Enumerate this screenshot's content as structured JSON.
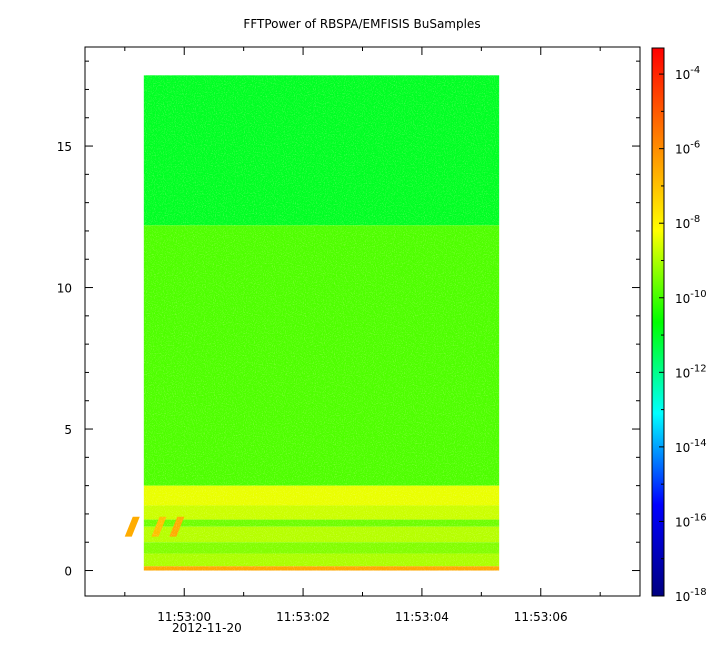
{
  "chart_data": {
    "type": "heatmap",
    "title": "FFTPower of RBSPA/EMFISIS  BuSamples",
    "xlabel": "",
    "ylabel": "",
    "x_ticks": [
      "11:53:00",
      "11:53:02",
      "11:53:04",
      "11:53:06"
    ],
    "x_tick_values_seconds": [
      0,
      2,
      4,
      6
    ],
    "x_date_label": "2012-11-20",
    "xlim_seconds": [
      -1.67,
      7.67
    ],
    "data_x_range_seconds": [
      -0.68,
      5.3
    ],
    "y_ticks": [
      "0",
      "5",
      "10",
      "15"
    ],
    "y_tick_values": [
      0,
      5,
      10,
      15
    ],
    "ylim": [
      -0.9,
      18.5
    ],
    "data_y_range": [
      0,
      17.5
    ],
    "colorbar": {
      "scale": "log",
      "range_exponents": [
        -18,
        -3.3
      ],
      "tick_base": "10",
      "tick_exponents": [
        "-4",
        "-6",
        "-8",
        "-10",
        "-12",
        "-14",
        "-16",
        "-18"
      ],
      "tick_values": [
        -4,
        -6,
        -8,
        -10,
        -12,
        -14,
        -16,
        -18
      ],
      "colors": [
        "#000080",
        "#0000ff",
        "#00ffff",
        "#00ff00",
        "#ffff00",
        "#ff8000",
        "#ff0000"
      ]
    },
    "bands": [
      {
        "y_from": 12.2,
        "y_to": 17.5,
        "log_power": -11.0
      },
      {
        "y_from 3.0": null,
        "y_from": 3.0,
        "y_to": 12.2,
        "log_power": -9.9
      },
      {
        "y_from": 2.3,
        "y_to": 3.0,
        "log_power": -8.4
      },
      {
        "y_from": 1.8,
        "y_to": 2.3,
        "log_power": -8.7
      },
      {
        "y_from": 1.55,
        "y_to": 1.8,
        "log_power": -9.6
      },
      {
        "y_from": 1.0,
        "y_to": 1.55,
        "log_power": -8.9
      },
      {
        "y_from": 0.6,
        "y_to": 1.0,
        "log_power": -9.4
      },
      {
        "y_from": 0.15,
        "y_to": 0.6,
        "log_power": -9.0
      },
      {
        "y_from": 0.0,
        "y_to": 0.15,
        "log_power": -6.5
      }
    ],
    "bursts": [
      {
        "t": -0.9,
        "y_from": 1.2,
        "y_to": 1.9,
        "log_power": -6.6
      },
      {
        "t": -0.45,
        "y_from": 1.2,
        "y_to": 1.9,
        "log_power": -7.0
      },
      {
        "t": -0.15,
        "y_from": 1.2,
        "y_to": 1.9,
        "log_power": -6.6
      }
    ],
    "grid": false
  }
}
